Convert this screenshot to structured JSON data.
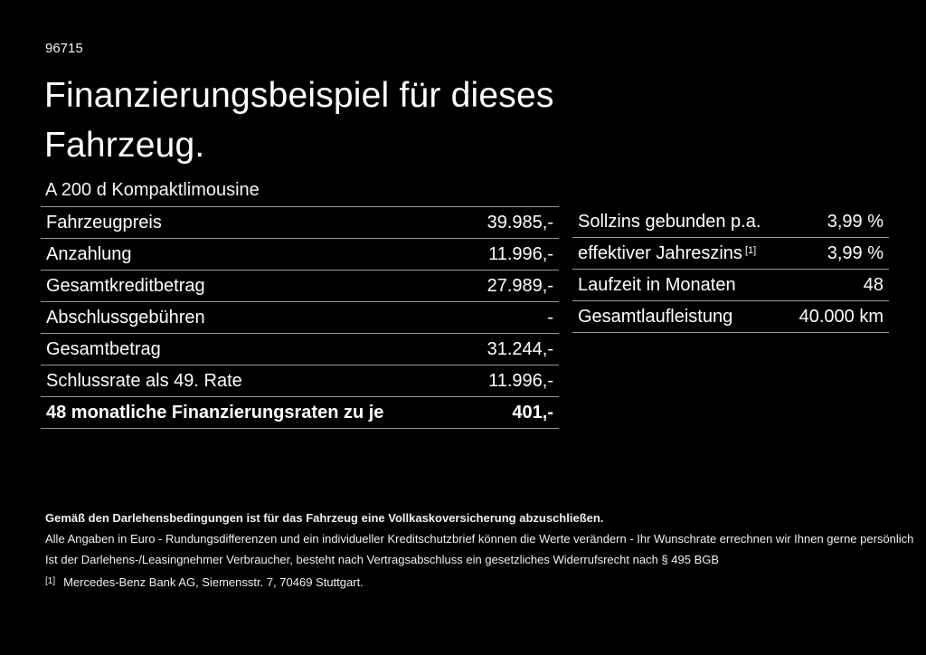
{
  "page": {
    "doc_id": "96715",
    "title": "Finanzierungsbeispiel für dieses Fahrzeug.",
    "vehicle_name": "A 200 d Kompaktlimousine"
  },
  "colors": {
    "background": "#000000",
    "text": "#ffffff",
    "divider": "#999999"
  },
  "finance_table": {
    "rows": [
      {
        "label": "Fahrzeugpreis",
        "value": "39.985,-"
      },
      {
        "label": "Anzahlung",
        "value": "11.996,-"
      },
      {
        "label": "Gesamtkreditbetrag",
        "value": "27.989,-"
      },
      {
        "label": "Abschlussgebühren",
        "value": "-"
      },
      {
        "label": "Gesamtbetrag",
        "value": "31.244,-"
      },
      {
        "label": "Schlussrate als 49. Rate",
        "value": "11.996,-"
      },
      {
        "label": "48 monatliche Finanzierungsraten zu je",
        "value": "401,-",
        "emphasis": true
      }
    ]
  },
  "conditions_table": {
    "rows": [
      {
        "label": "Sollzins gebunden p.a.",
        "value": "3,99 %"
      },
      {
        "label": "effektiver Jahreszins",
        "footnote_marker": "[1]",
        "value": "3,99 %"
      },
      {
        "label": "Laufzeit in Monaten",
        "value": "48"
      },
      {
        "label": "Gesamtlaufleistung",
        "value": "40.000 km"
      }
    ]
  },
  "fine_print": {
    "insurance_note": "Gemäß den Darlehensbedingungen ist für das Fahrzeug eine Vollkaskoversicherung abzuschließen.",
    "disclaimer": "Alle Angaben in Euro - Rundungsdifferenzen und ein individueller Kreditschutzbrief können die Werte verändern - Ihr Wunschrate errechnen wir Ihnen gerne persönlich",
    "revocation": "Ist der Darlehens-/Leasingnehmer Verbraucher, besteht nach Vertragsabschluss ein gesetzliches Widerrufsrecht nach § 495 BGB",
    "footnote_marker": "[1]",
    "footnote_text": "Mercedes-Benz Bank AG, Siemensstr. 7, 70469 Stuttgart."
  }
}
